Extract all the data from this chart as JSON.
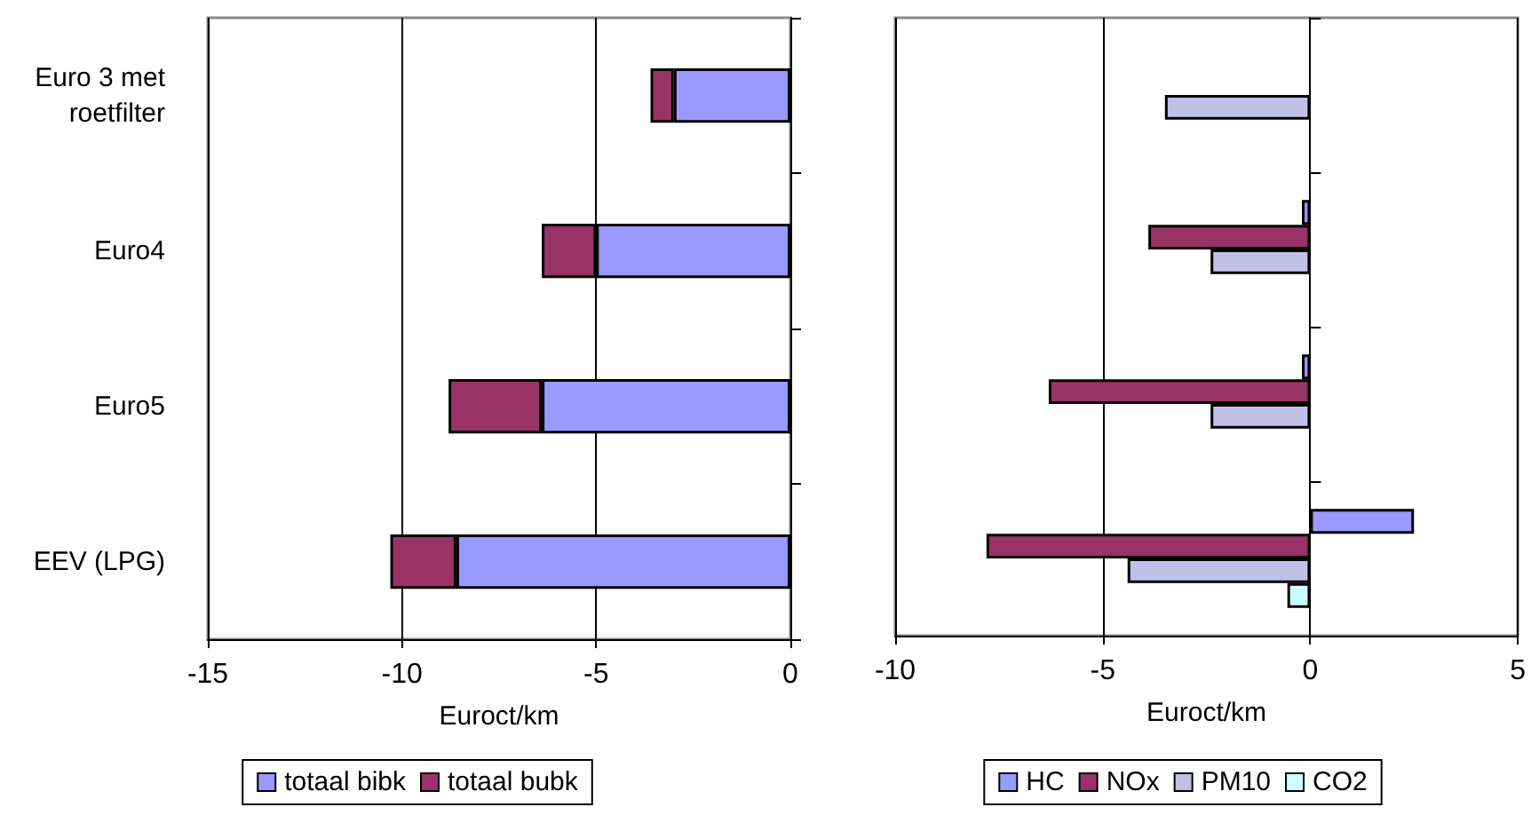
{
  "chart_data": [
    {
      "type": "bar",
      "orientation": "horizontal",
      "stacked": true,
      "categories": [
        "Euro 3 met\nroetfilter",
        "Euro4",
        "Euro5",
        "EEV (LPG)"
      ],
      "series": [
        {
          "name": "totaal bibk",
          "color": "#9999ff",
          "values": [
            -3,
            -5,
            -6.4,
            -8.6
          ]
        },
        {
          "name": "totaal bubk",
          "color": "#993366",
          "values": [
            -0.6,
            -1.4,
            -2.4,
            -1.7
          ]
        }
      ],
      "xlabel": "Euroct/km",
      "xlim": [
        -15,
        0
      ],
      "xticks": [
        -15,
        -10,
        -5,
        0
      ],
      "grid": "x",
      "legend": "bottom"
    },
    {
      "type": "bar",
      "orientation": "horizontal",
      "categories": [
        null,
        null,
        null,
        null
      ],
      "series": [
        {
          "name": "HC",
          "color": "#9999ff",
          "values": [
            null,
            -0.2,
            -0.2,
            2.5
          ]
        },
        {
          "name": "NOx",
          "color": "#993366",
          "values": [
            null,
            -3.9,
            -6.3,
            -7.8
          ]
        },
        {
          "name": "PM10",
          "color": "#c0c0e8",
          "values": [
            -3.5,
            -2.4,
            -2.4,
            -4.4
          ]
        },
        {
          "name": "CO2",
          "color": "#ccffff",
          "values": [
            null,
            null,
            null,
            -0.55
          ]
        }
      ],
      "xlabel": "Euroct/km",
      "xlim": [
        -10,
        5
      ],
      "xticks": [
        -10,
        -5,
        0,
        5
      ],
      "grid": "x",
      "legend": "bottom"
    }
  ]
}
